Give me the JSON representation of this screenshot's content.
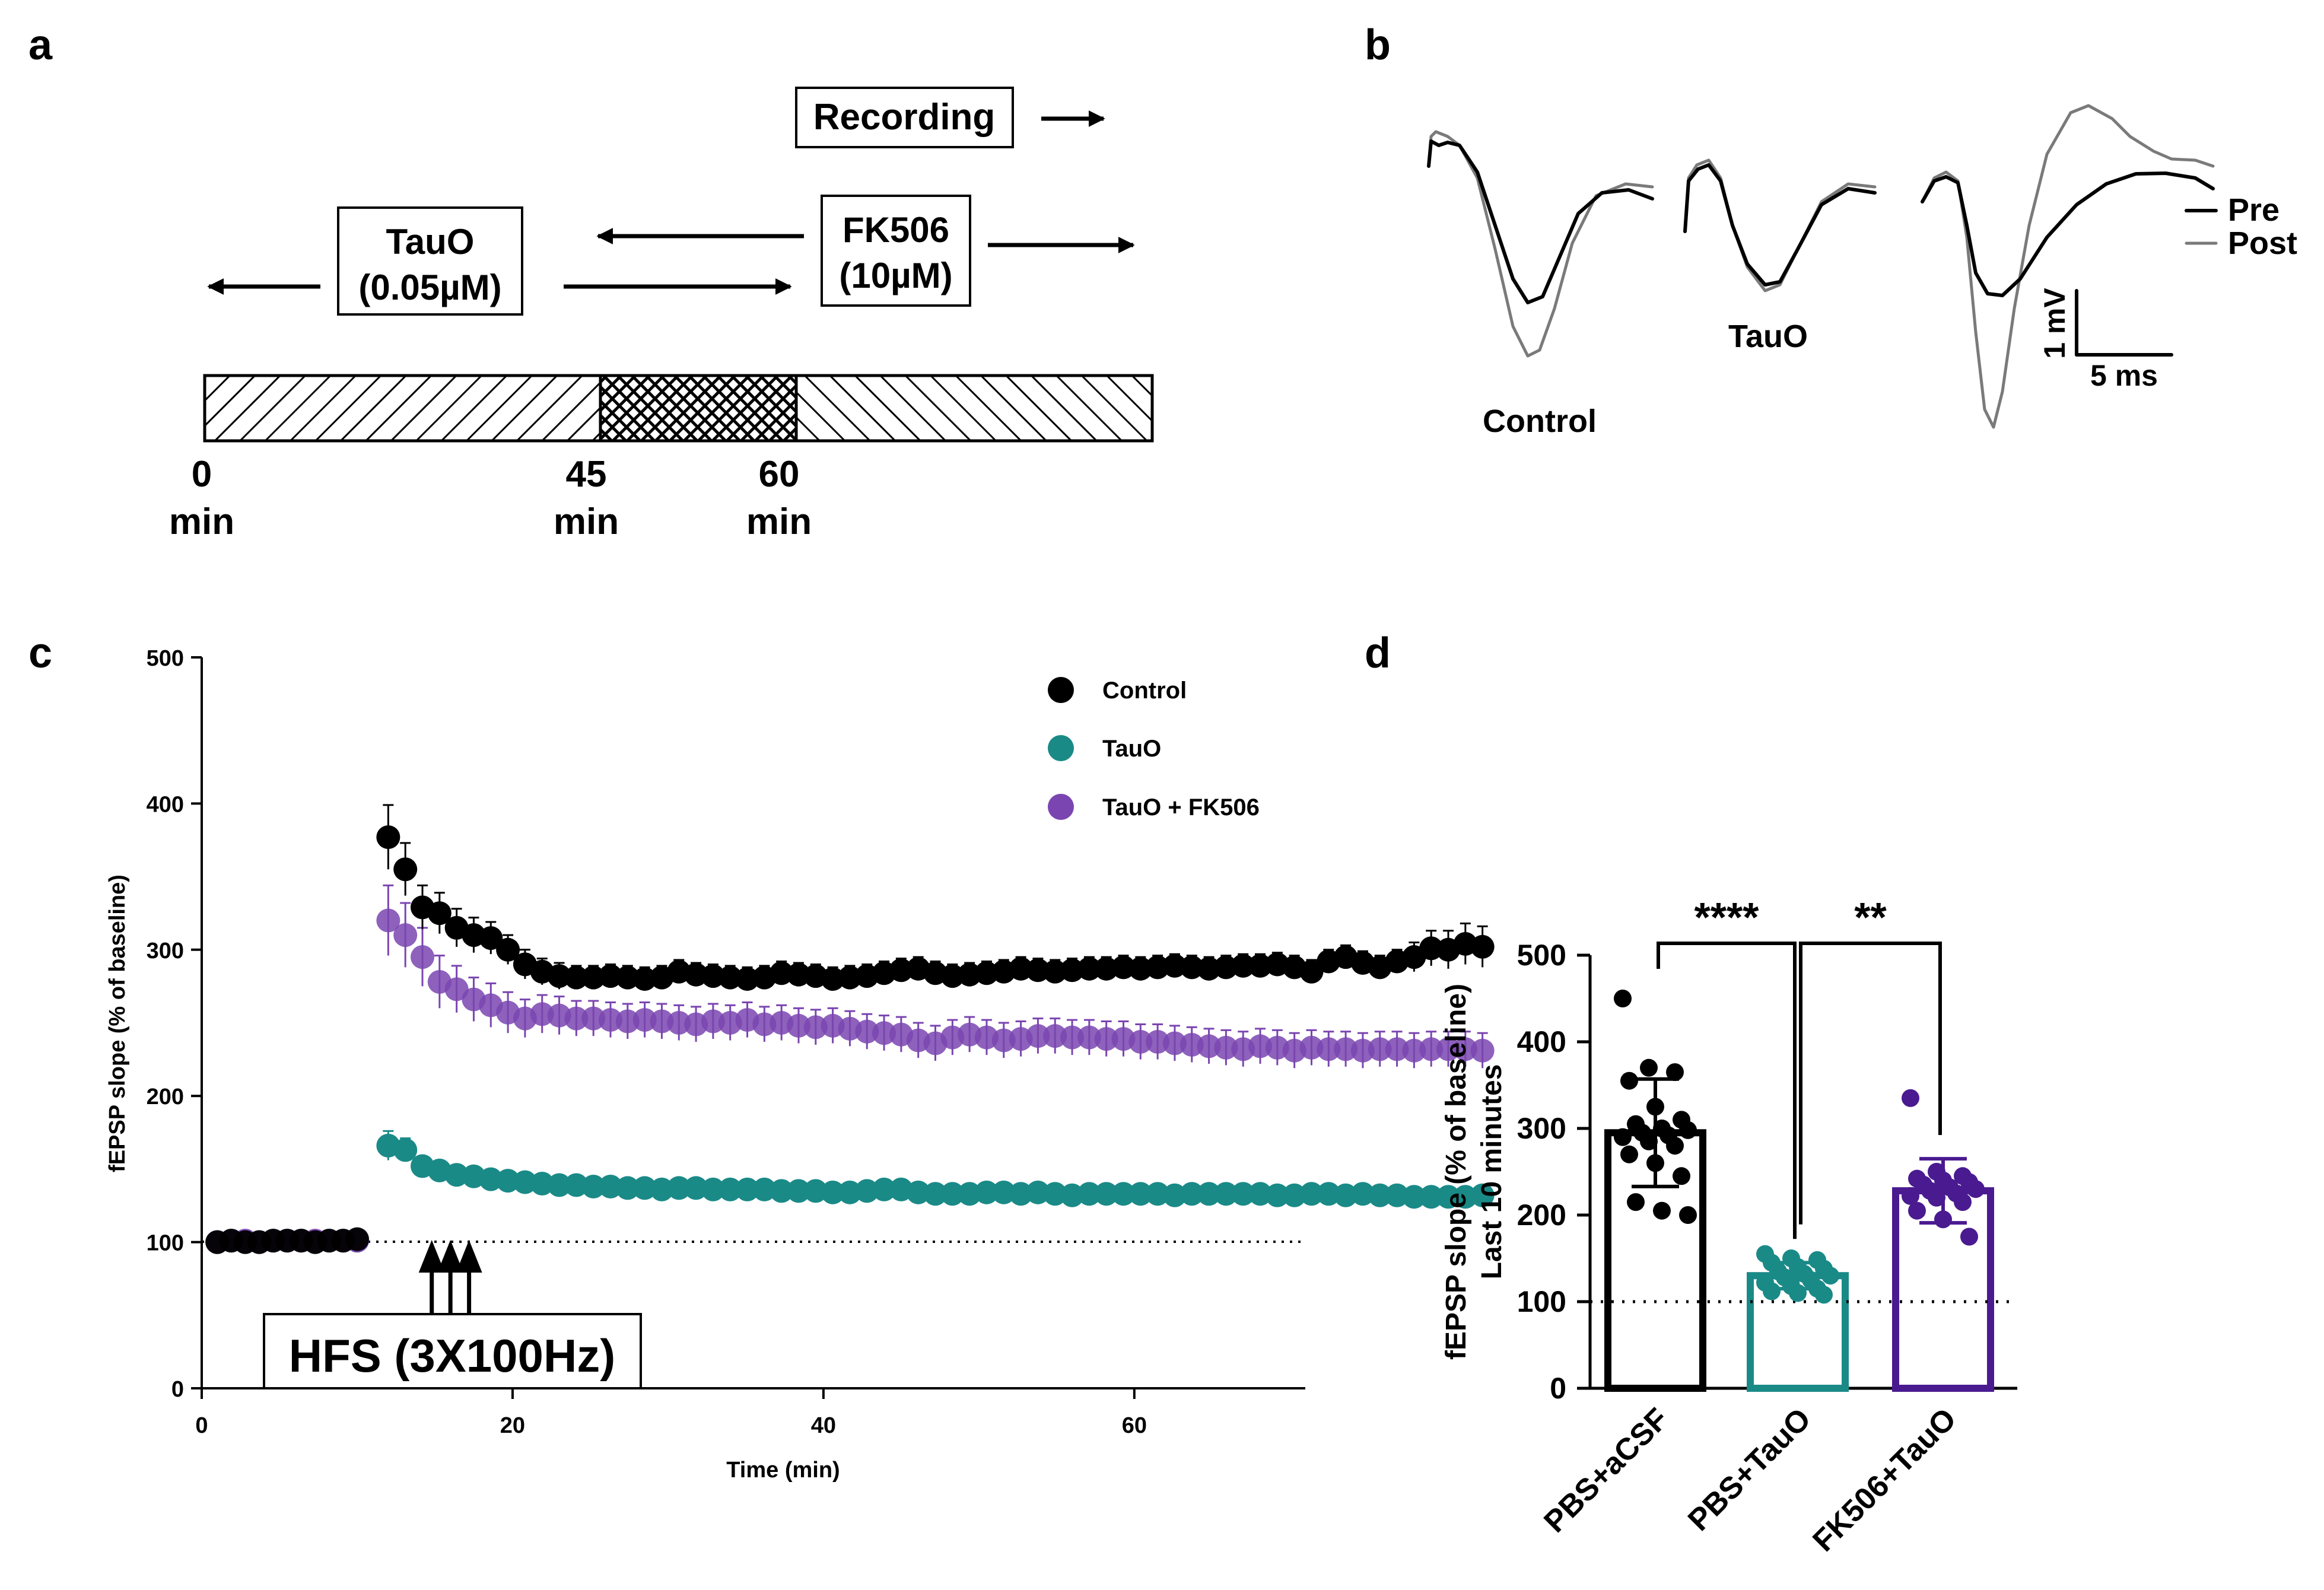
{
  "panel_labels": {
    "a": "a",
    "b": "b",
    "c": "c",
    "d": "d"
  },
  "colors": {
    "control": "#000000",
    "tauo": "#1a8a87",
    "fk506": "#7a45b0",
    "fk506_bar": "#4a1a90",
    "post_trace": "#7a7a7a"
  },
  "panel_a": {
    "recording": "Recording",
    "tauo_line1": "TauO",
    "tauo_line2": "(0.05µM)",
    "fk506_line1": "FK506",
    "fk506_line2": "(10µM)",
    "tick0": "0",
    "tick45": "45",
    "tick60": "60",
    "unit": "min"
  },
  "panel_b": {
    "control_label": "Control",
    "tauo_label": "TauO",
    "legend_pre": "Pre",
    "legend_post": "Post",
    "scale_v": "1 mV",
    "scale_t": "5 ms"
  },
  "chart_data": [
    {
      "id": "c",
      "type": "scatter",
      "xlabel": "Time (min)",
      "ylabel": "fEPSP slope (% of baseline)",
      "xlim": [
        0,
        71
      ],
      "ylim": [
        0,
        500
      ],
      "xticks": [
        0,
        20,
        40,
        60
      ],
      "yticks": [
        0,
        100,
        200,
        300,
        400,
        500
      ],
      "baseline": 100,
      "annotation": "HFS (3X100Hz)",
      "hfs_times": [
        14.8,
        16,
        17.2
      ],
      "legend": [
        "Control",
        "TauO",
        "TauO + FK506"
      ],
      "series": [
        {
          "name": "Control",
          "color": "#000000",
          "x_start": 12,
          "x_step": 1.1,
          "baseline_values": [
            100,
            101,
            100,
            100,
            101,
            101,
            101,
            100,
            101,
            101,
            102
          ],
          "values": [
            377,
            355,
            329,
            325,
            315,
            310,
            308,
            300,
            290,
            285,
            282,
            281,
            281,
            282,
            281,
            280,
            281,
            285,
            283,
            282,
            281,
            280,
            281,
            284,
            283,
            282,
            280,
            281,
            282,
            284,
            286,
            287,
            284,
            282,
            283,
            284,
            285,
            287,
            286,
            285,
            286,
            287,
            287,
            288,
            287,
            288,
            289,
            288,
            287,
            288,
            289,
            289,
            290,
            288,
            285,
            292,
            295,
            291,
            288,
            292,
            295,
            301,
            300,
            304,
            302
          ],
          "errors": [
            22,
            18,
            15,
            14,
            13,
            12,
            11,
            10,
            10,
            9,
            9,
            8,
            8,
            8,
            8,
            8,
            8,
            8,
            8,
            8,
            8,
            8,
            8,
            8,
            8,
            8,
            8,
            8,
            8,
            8,
            8,
            8,
            8,
            8,
            8,
            8,
            8,
            8,
            8,
            8,
            8,
            8,
            8,
            8,
            8,
            8,
            8,
            8,
            8,
            8,
            8,
            8,
            8,
            8,
            8,
            8,
            8,
            8,
            8,
            8,
            10,
            12,
            13,
            14,
            14
          ]
        },
        {
          "name": "TauO",
          "color": "#1a8a87",
          "x_start": 12,
          "x_step": 1.1,
          "baseline_values": [
            100,
            101,
            100,
            100,
            101,
            101,
            101,
            100,
            101,
            101,
            101
          ],
          "values": [
            166,
            163,
            152,
            149,
            146,
            145,
            143,
            142,
            141,
            140,
            139,
            139,
            138,
            138,
            137,
            137,
            136,
            137,
            137,
            136,
            136,
            136,
            136,
            135,
            135,
            135,
            134,
            134,
            135,
            136,
            136,
            134,
            133,
            133,
            133,
            134,
            134,
            133,
            134,
            133,
            132,
            133,
            133,
            133,
            133,
            133,
            132,
            133,
            133,
            133,
            133,
            133,
            132,
            132,
            133,
            133,
            132,
            133,
            132,
            132,
            131,
            131,
            131,
            131,
            132
          ],
          "errors": [
            10,
            8,
            6,
            5,
            5,
            4,
            4,
            4,
            4,
            4,
            4,
            4,
            4,
            4,
            4,
            4,
            4,
            4,
            4,
            4,
            4,
            4,
            4,
            4,
            4,
            4,
            4,
            4,
            4,
            4,
            4,
            4,
            4,
            4,
            4,
            4,
            4,
            4,
            4,
            4,
            4,
            4,
            4,
            4,
            4,
            4,
            4,
            4,
            4,
            4,
            4,
            4,
            4,
            4,
            4,
            4,
            4,
            4,
            4,
            4,
            4,
            4,
            4,
            4,
            4
          ]
        },
        {
          "name": "TauO + FK506",
          "color": "#7a45b0",
          "x_start": 12,
          "x_step": 1.1,
          "baseline_values": [
            100,
            101,
            101,
            100,
            101,
            101,
            101,
            101,
            101,
            101,
            101
          ],
          "values": [
            320,
            310,
            295,
            278,
            273,
            266,
            262,
            257,
            253,
            256,
            255,
            253,
            253,
            252,
            251,
            252,
            251,
            250,
            249,
            251,
            250,
            252,
            249,
            250,
            248,
            247,
            248,
            246,
            244,
            243,
            242,
            238,
            236,
            240,
            242,
            240,
            238,
            239,
            241,
            241,
            240,
            240,
            239,
            239,
            237,
            237,
            236,
            235,
            234,
            233,
            232,
            234,
            233,
            231,
            233,
            232,
            232,
            231,
            232,
            232,
            231,
            232,
            232,
            232,
            231
          ],
          "errors": [
            24,
            22,
            20,
            18,
            16,
            15,
            15,
            14,
            13,
            13,
            13,
            12,
            12,
            12,
            12,
            12,
            12,
            12,
            12,
            12,
            12,
            12,
            12,
            12,
            12,
            12,
            12,
            12,
            12,
            12,
            12,
            12,
            12,
            12,
            12,
            12,
            12,
            12,
            12,
            12,
            12,
            12,
            12,
            12,
            12,
            12,
            12,
            12,
            12,
            12,
            12,
            12,
            12,
            12,
            12,
            12,
            12,
            12,
            12,
            12,
            12,
            12,
            12,
            12,
            12
          ]
        }
      ]
    },
    {
      "id": "d",
      "type": "bar",
      "ylabel_line1": "fEPSP slope (% of baseline)",
      "ylabel_line2": "Last 10 minutes",
      "ylim": [
        0,
        500
      ],
      "yticks": [
        0,
        100,
        200,
        300,
        400,
        500
      ],
      "baseline": 100,
      "categories": [
        "PBS+aCSF",
        "PBS+TauO",
        "FK506+TauO"
      ],
      "means": [
        295,
        130,
        228
      ],
      "sd": [
        62,
        15,
        37
      ],
      "colors": [
        "#000000",
        "#1a8a87",
        "#4a1a90"
      ],
      "points": [
        [
          450,
          370,
          365,
          355,
          325,
          310,
          305,
          300,
          298,
          295,
          292,
          290,
          285,
          280,
          270,
          260,
          245,
          215,
          205,
          200
        ],
        [
          155,
          150,
          148,
          145,
          140,
          138,
          135,
          132,
          130,
          128,
          125,
          122,
          118,
          115,
          112,
          110,
          108
        ],
        [
          335,
          250,
          245,
          242,
          240,
          238,
          235,
          232,
          230,
          228,
          225,
          222,
          220,
          215,
          205,
          195,
          175
        ]
      ],
      "significance": [
        {
          "from": 0,
          "to": 1,
          "label": "****"
        },
        {
          "from": 1,
          "to": 2,
          "label": "**"
        }
      ]
    }
  ]
}
